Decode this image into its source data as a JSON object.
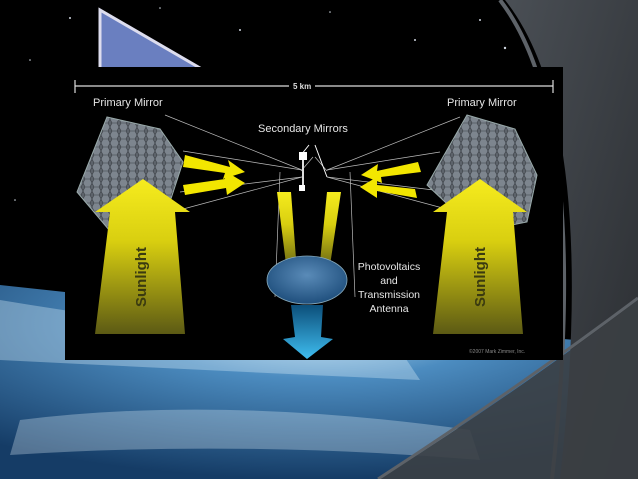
{
  "diagram": {
    "span_label": "5 km",
    "primary_mirror_left": "Primary Mirror",
    "primary_mirror_right": "Primary Mirror",
    "secondary_mirrors": "Secondary Mirrors",
    "photovoltaics_line1": "Photovoltaics",
    "photovoltaics_line2": "and",
    "photovoltaics_line3": "Transmission",
    "photovoltaics_line4": "Antenna",
    "sunlight_left": "Sunlight",
    "sunlight_right": "Sunlight",
    "copyright": "©2007 Mark Zimmer, Inc."
  },
  "colors": {
    "beam_yellow": "#f2e600",
    "beam_dark": "#6b6a1a",
    "mirror_grey": "#8a8f96",
    "receiver_blue": "#3d6f9e",
    "transmission_cyan": "#22a9e0",
    "slide_bg": "#000000"
  },
  "icons": [
    "slide-corner-graphic",
    "earth-horizon",
    "star-field"
  ]
}
